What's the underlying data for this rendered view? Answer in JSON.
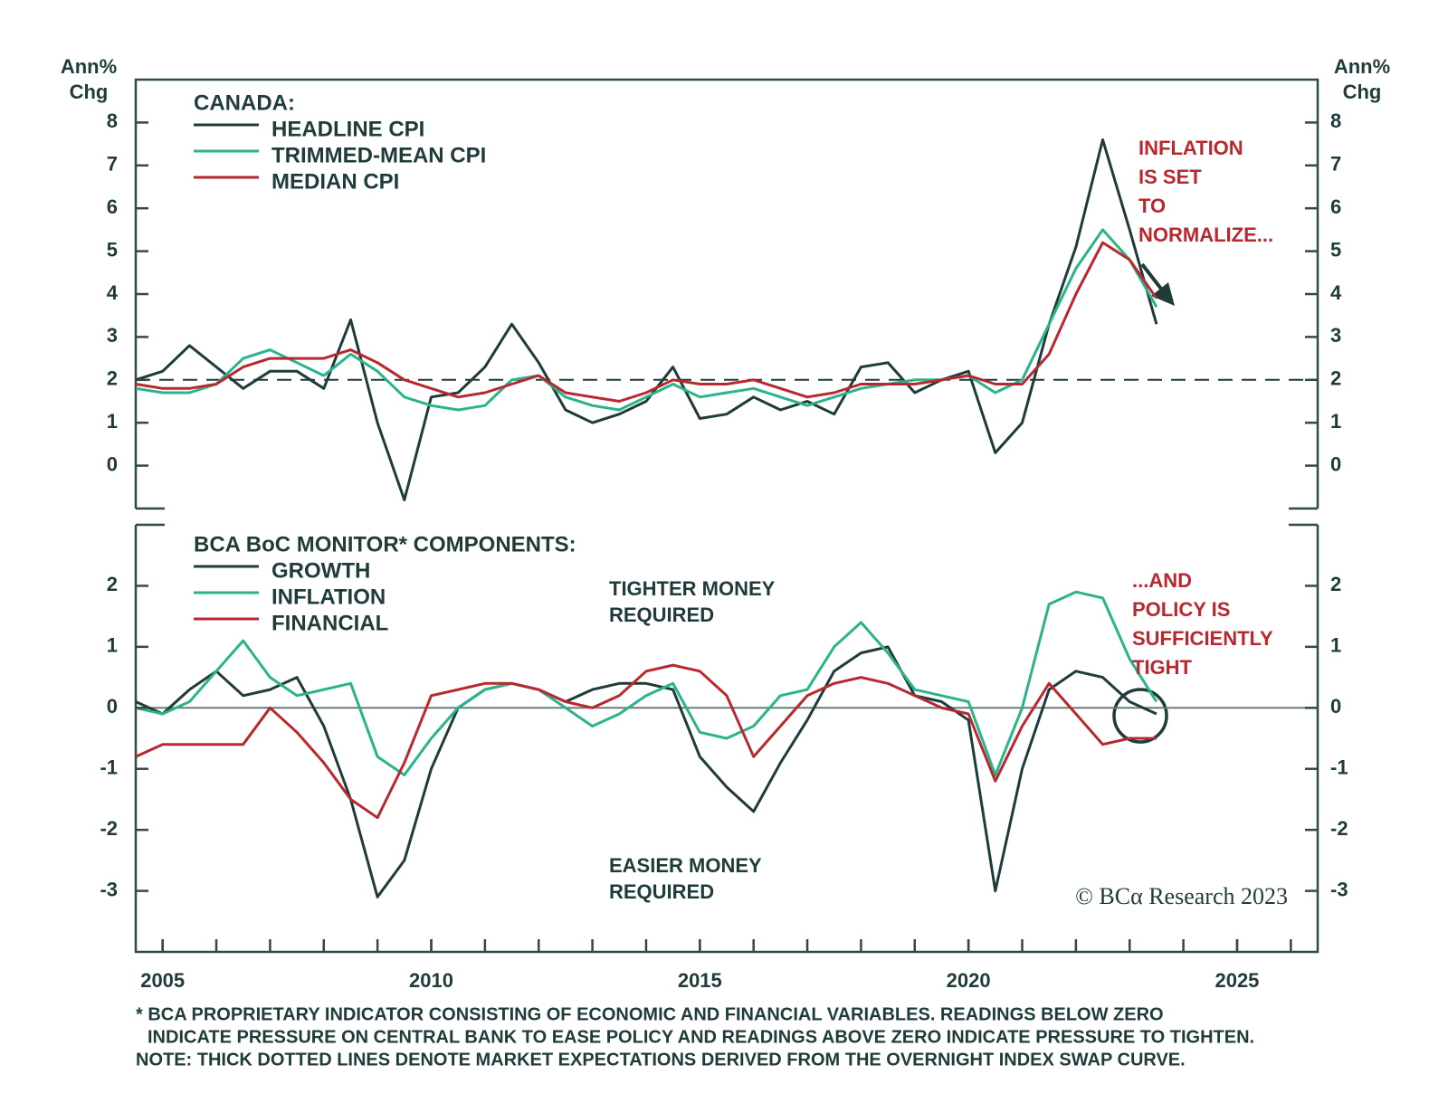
{
  "chart_data": [
    {
      "type": "line",
      "ylabel_lines": [
        "Ann%",
        "Chg"
      ],
      "y2label_lines": [
        "Ann%",
        "Chg"
      ],
      "legend_title": "CANADA:",
      "xlim": [
        2004.5,
        2026.5
      ],
      "ylim": [
        -1,
        9
      ],
      "yticks": [
        0,
        1,
        2,
        3,
        4,
        5,
        6,
        7,
        8
      ],
      "y2lim": [
        -1,
        9
      ],
      "y2ticks": [
        0,
        1,
        2,
        3,
        4,
        5,
        6,
        7,
        8
      ],
      "hline": 2,
      "hline_style": "dashed",
      "x": [
        2004.5,
        2005,
        2005.5,
        2006,
        2006.5,
        2007,
        2007.5,
        2008,
        2008.5,
        2009,
        2009.5,
        2010,
        2010.5,
        2011,
        2011.5,
        2012,
        2012.5,
        2013,
        2013.5,
        2014,
        2014.5,
        2015,
        2015.5,
        2016,
        2016.5,
        2017,
        2017.5,
        2018,
        2018.5,
        2019,
        2019.5,
        2020,
        2020.5,
        2021,
        2021.5,
        2022,
        2022.5,
        2023,
        2023.5
      ],
      "series": [
        {
          "name": "HEADLINE CPI",
          "color": "#1f3b3a",
          "values": [
            2.0,
            2.2,
            2.8,
            2.3,
            1.8,
            2.2,
            2.2,
            1.8,
            3.4,
            1.0,
            -0.8,
            1.6,
            1.7,
            2.3,
            3.3,
            2.4,
            1.3,
            1.0,
            1.2,
            1.5,
            2.3,
            1.1,
            1.2,
            1.6,
            1.3,
            1.5,
            1.2,
            2.3,
            2.4,
            1.7,
            2.0,
            2.2,
            0.3,
            1.0,
            3.3,
            5.1,
            7.6,
            5.5,
            3.3
          ]
        },
        {
          "name": "TRIMMED-MEAN CPI",
          "color": "#2bb38a",
          "values": [
            1.8,
            1.7,
            1.7,
            1.9,
            2.5,
            2.7,
            2.4,
            2.1,
            2.6,
            2.2,
            1.6,
            1.4,
            1.3,
            1.4,
            2.0,
            2.1,
            1.6,
            1.4,
            1.3,
            1.6,
            1.9,
            1.6,
            1.7,
            1.8,
            1.6,
            1.4,
            1.6,
            1.8,
            1.9,
            2.0,
            2.0,
            2.1,
            1.7,
            2.0,
            3.3,
            4.6,
            5.5,
            4.8,
            3.7
          ]
        },
        {
          "name": "MEDIAN CPI",
          "color": "#b8282e",
          "values": [
            1.9,
            1.8,
            1.8,
            1.9,
            2.3,
            2.5,
            2.5,
            2.5,
            2.7,
            2.4,
            2.0,
            1.8,
            1.6,
            1.7,
            1.9,
            2.1,
            1.7,
            1.6,
            1.5,
            1.7,
            2.0,
            1.9,
            1.9,
            2.0,
            1.8,
            1.6,
            1.7,
            1.9,
            1.9,
            1.9,
            2.0,
            2.1,
            1.9,
            1.9,
            2.6,
            4.0,
            5.2,
            4.8,
            3.9
          ]
        }
      ],
      "annotations": [
        {
          "lines": [
            "INFLATION",
            "IS SET",
            "TO",
            "NORMALIZE..."
          ],
          "color": "#b8282e"
        }
      ]
    },
    {
      "type": "line",
      "legend_title": "BCA BoC MONITOR* COMPONENTS:",
      "xlim": [
        2004.5,
        2026.5
      ],
      "xticks": [
        2005,
        2010,
        2015,
        2020,
        2025
      ],
      "x_minor_ticks": [
        2005,
        2006,
        2007,
        2008,
        2009,
        2010,
        2011,
        2012,
        2013,
        2014,
        2015,
        2016,
        2017,
        2018,
        2019,
        2020,
        2021,
        2022,
        2023,
        2024,
        2025,
        2026
      ],
      "ylim": [
        -4,
        3
      ],
      "yticks": [
        -3,
        -2,
        -1,
        0,
        1,
        2
      ],
      "y2lim": [
        -4,
        3
      ],
      "y2ticks": [
        -3,
        -2,
        -1,
        0,
        1,
        2
      ],
      "hline": 0,
      "hline_style": "solid",
      "x": [
        2004.5,
        2005,
        2005.5,
        2006,
        2006.5,
        2007,
        2007.5,
        2008,
        2008.5,
        2009,
        2009.5,
        2010,
        2010.5,
        2011,
        2011.5,
        2012,
        2012.5,
        2013,
        2013.5,
        2014,
        2014.5,
        2015,
        2015.5,
        2016,
        2016.5,
        2017,
        2017.5,
        2018,
        2018.5,
        2019,
        2019.5,
        2020,
        2020.5,
        2021,
        2021.5,
        2022,
        2022.5,
        2023,
        2023.5
      ],
      "series": [
        {
          "name": "GROWTH",
          "color": "#1f3b3a",
          "values": [
            0.1,
            -0.1,
            0.3,
            0.6,
            0.2,
            0.3,
            0.5,
            -0.3,
            -1.5,
            -3.1,
            -2.5,
            -1.0,
            0.0,
            0.3,
            0.4,
            0.3,
            0.1,
            0.3,
            0.4,
            0.4,
            0.3,
            -0.8,
            -1.3,
            -1.7,
            -0.9,
            -0.2,
            0.6,
            0.9,
            1.0,
            0.2,
            0.1,
            -0.2,
            -3.0,
            -1.0,
            0.3,
            0.6,
            0.5,
            0.1,
            -0.1
          ]
        },
        {
          "name": "INFLATION",
          "color": "#2bb38a",
          "values": [
            0.0,
            -0.1,
            0.1,
            0.6,
            1.1,
            0.5,
            0.2,
            0.3,
            0.4,
            -0.8,
            -1.1,
            -0.5,
            0.0,
            0.3,
            0.4,
            0.3,
            0.0,
            -0.3,
            -0.1,
            0.2,
            0.4,
            -0.4,
            -0.5,
            -0.3,
            0.2,
            0.3,
            1.0,
            1.4,
            0.9,
            0.3,
            0.2,
            0.1,
            -1.1,
            0.0,
            1.7,
            1.9,
            1.8,
            0.8,
            0.1
          ]
        },
        {
          "name": "FINANCIAL",
          "color": "#b8282e",
          "values": [
            -0.8,
            -0.6,
            -0.6,
            -0.6,
            -0.6,
            0.0,
            -0.4,
            -0.9,
            -1.5,
            -1.8,
            -0.9,
            0.2,
            0.3,
            0.4,
            0.4,
            0.3,
            0.1,
            0.0,
            0.2,
            0.6,
            0.7,
            0.6,
            0.2,
            -0.8,
            -0.3,
            0.2,
            0.4,
            0.5,
            0.4,
            0.2,
            0.0,
            -0.1,
            -1.2,
            -0.3,
            0.4,
            -0.1,
            -0.6,
            -0.5,
            -0.5
          ]
        }
      ],
      "annotations": [
        {
          "lines": [
            "TIGHTER MONEY",
            "REQUIRED"
          ],
          "color": "#1f3b3a"
        },
        {
          "lines": [
            "EASIER MONEY",
            "REQUIRED"
          ],
          "color": "#1f3b3a"
        },
        {
          "lines": [
            "...AND",
            "POLICY IS",
            "SUFFICIENTLY",
            "TIGHT"
          ],
          "color": "#b8282e"
        }
      ],
      "copyright": "© BCα Research 2023"
    }
  ],
  "footnotes": [
    "* BCA PROPRIETARY INDICATOR CONSISTING OF ECONOMIC AND FINANCIAL VARIABLES. READINGS BELOW ZERO",
    "INDICATE PRESSURE ON CENTRAL BANK TO EASE POLICY AND READINGS ABOVE ZERO INDICATE PRESSURE TO TIGHTEN.",
    "NOTE: THICK DOTTED LINES DENOTE MARKET EXPECTATIONS DERIVED FROM THE OVERNIGHT INDEX SWAP CURVE."
  ]
}
